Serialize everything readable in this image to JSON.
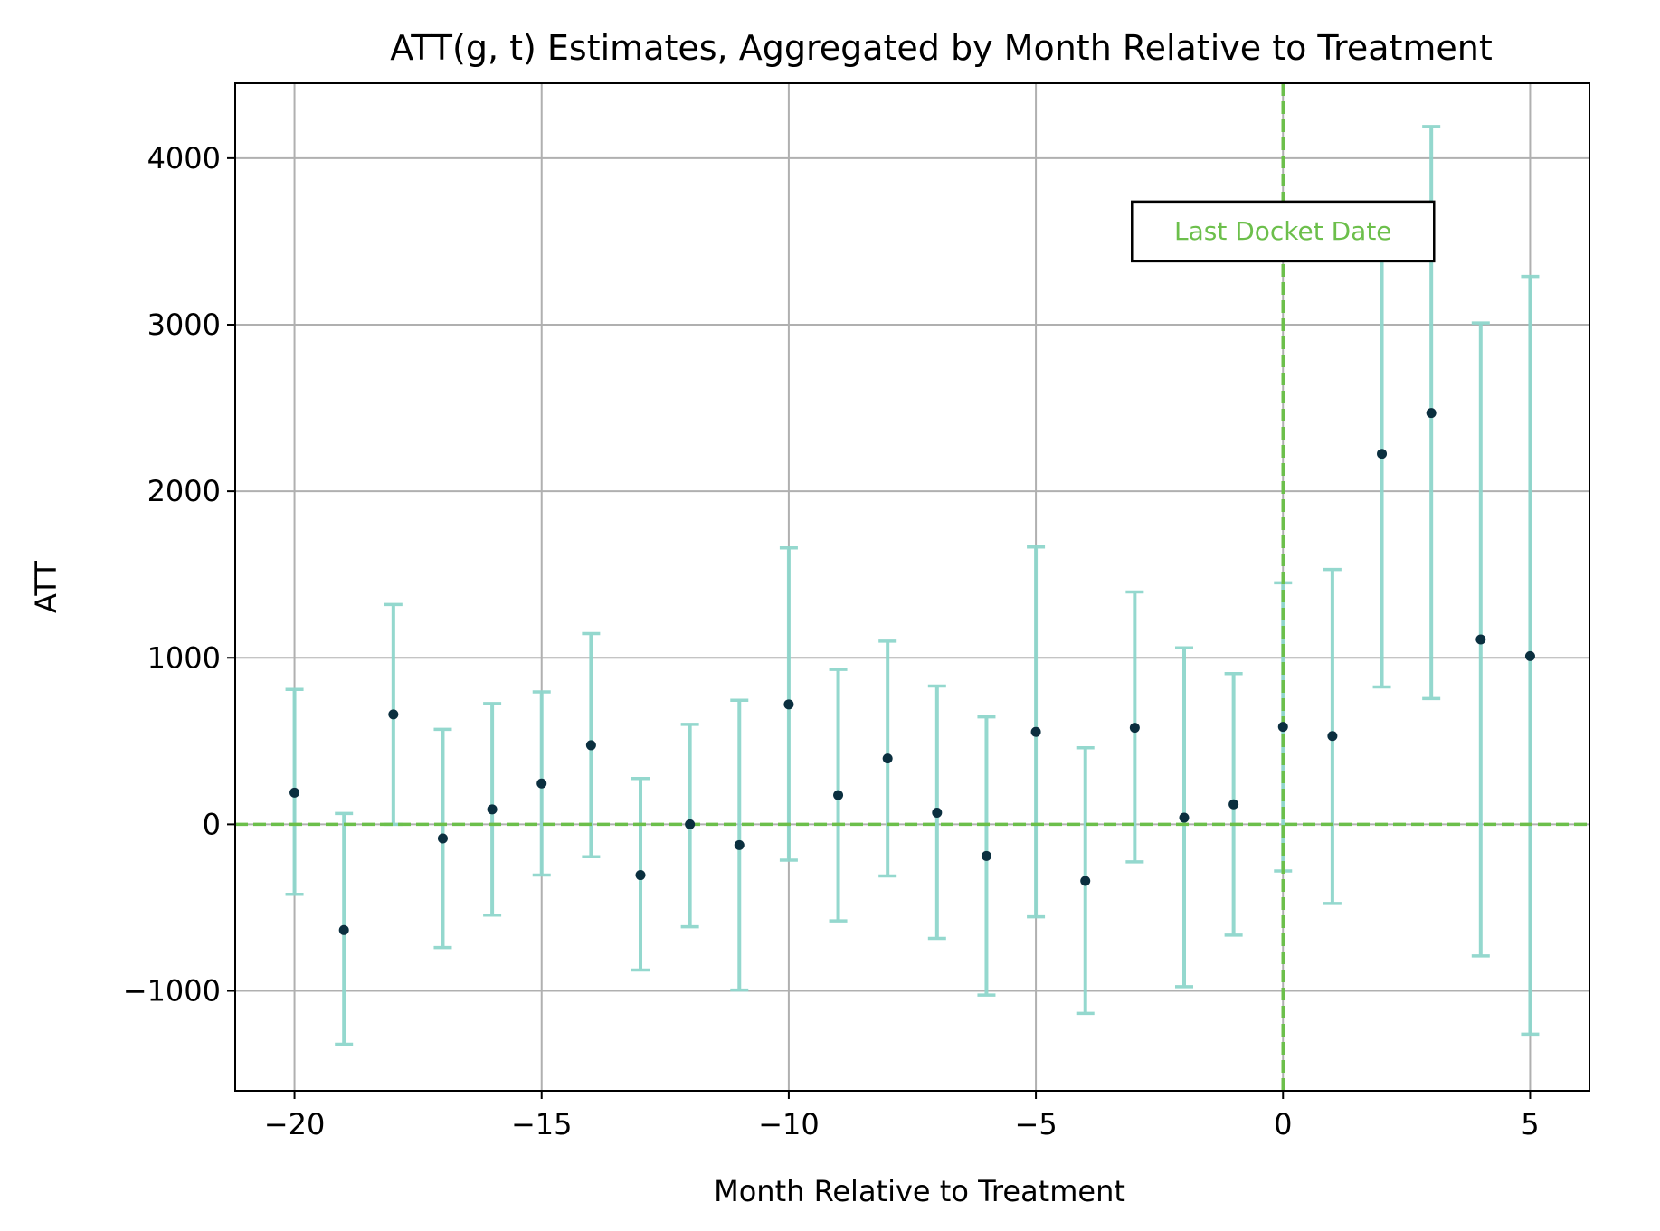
{
  "chart_data": {
    "type": "scatter",
    "title": "ATT(g, t) Estimates, Aggregated by Month Relative to Treatment",
    "xlabel": "Month Relative to Treatment",
    "ylabel": "ATT",
    "xlim": [
      -21.2,
      6.2
    ],
    "ylim": [
      -1600,
      4450
    ],
    "x_ticks": [
      -20,
      -15,
      -10,
      -5,
      0,
      5
    ],
    "x_tick_labels": [
      "−20",
      "−15",
      "−10",
      "−5",
      "0",
      "5"
    ],
    "y_ticks": [
      -1000,
      0,
      1000,
      2000,
      3000,
      4000
    ],
    "y_tick_labels": [
      "−1000",
      "0",
      "1000",
      "2000",
      "3000",
      "4000"
    ],
    "grid": true,
    "series": [
      {
        "x": [
          -20,
          -19,
          -18,
          -17,
          -16,
          -15,
          -14,
          -13,
          -12,
          -11,
          -10,
          -9,
          -8,
          -7,
          -6,
          -5,
          -4,
          -3,
          -2,
          -1,
          0,
          1,
          2,
          3,
          4,
          5
        ],
        "y": [
          190,
          -635,
          660,
          -85,
          90,
          245,
          475,
          -305,
          0,
          -125,
          720,
          175,
          395,
          70,
          -190,
          555,
          -340,
          580,
          40,
          120,
          585,
          530,
          2225,
          2470,
          1110,
          1010
        ],
        "ci_lower": [
          -420,
          -1320,
          0,
          -740,
          -545,
          -305,
          -195,
          -875,
          -615,
          -995,
          -215,
          -580,
          -310,
          -685,
          -1025,
          -555,
          -1135,
          -225,
          -975,
          -665,
          -280,
          -475,
          825,
          755,
          -790,
          -1260
        ],
        "ci_upper": [
          810,
          65,
          1320,
          570,
          725,
          795,
          1145,
          275,
          600,
          745,
          1660,
          930,
          1100,
          830,
          645,
          1665,
          460,
          1395,
          1060,
          905,
          1450,
          1530,
          3625,
          4190,
          3010,
          3290
        ]
      }
    ],
    "reference_lines": {
      "horizontal_y": 0,
      "vertical_x": 0,
      "color": "#6cbf4b"
    },
    "annotation": {
      "text": "Last Docket Date",
      "x": 0,
      "y": 3560
    },
    "colors": {
      "point": "#0b2f3f",
      "errorbar": "#8fd6cc",
      "grid": "#b0b0b0",
      "reference": "#6cbf4b",
      "annotation_text": "#6cbf4b"
    }
  }
}
